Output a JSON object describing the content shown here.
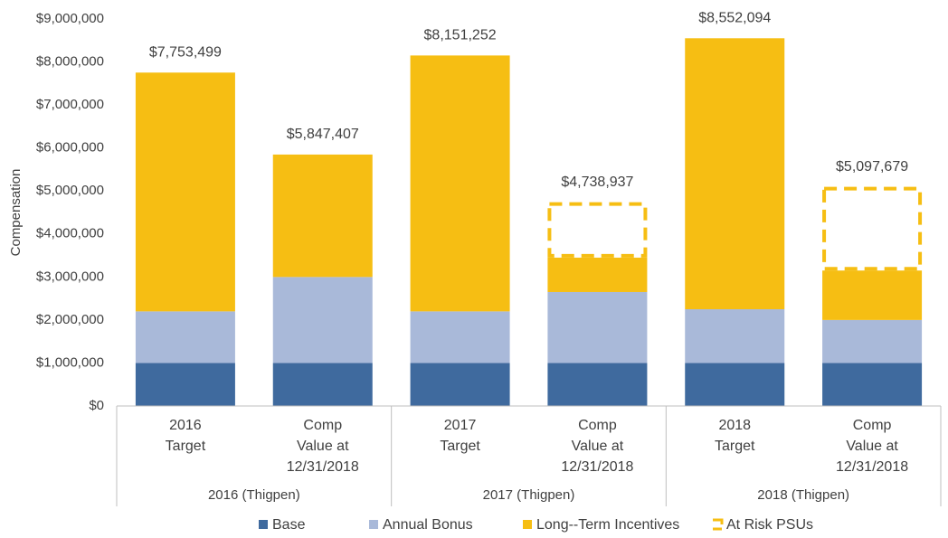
{
  "chart_data": {
    "type": "stacked_bar",
    "y_label": "Compensation",
    "categories": [
      [
        "2016",
        "Target"
      ],
      [
        "Comp",
        "Value at",
        "12/31/2018"
      ],
      [
        "2017",
        "Target"
      ],
      [
        "Comp",
        "Value at",
        "12/31/2018"
      ],
      [
        "2018",
        "Target"
      ],
      [
        "Comp",
        "Value at",
        "12/31/2018"
      ]
    ],
    "groups": [
      "2016 (Thigpen)",
      "2017 (Thigpen)",
      "2018 (Thigpen)"
    ],
    "total_labels": [
      "$7,753,499",
      "$5,847,407",
      "$8,151,252",
      "$4,738,937",
      "$8,552,094",
      "$5,097,679"
    ],
    "series": [
      {
        "name": "Base",
        "color": "#3f6a9e",
        "values": [
          1000000,
          1000000,
          1000000,
          1000000,
          1000000,
          1000000
        ]
      },
      {
        "name": "Annual Bonus",
        "color": "#a9b9d9",
        "values": [
          1200000,
          2000000,
          1200000,
          1650000,
          1250000,
          1000000
        ]
      },
      {
        "name": "Long--Term Incentives",
        "color": "#f6be13",
        "values": [
          5553499,
          2847407,
          5951252,
          800000,
          6302094,
          1150000
        ]
      },
      {
        "name": "At Risk PSUs",
        "color": "#f6be13",
        "style": "dashed",
        "values": [
          null,
          null,
          null,
          1288937,
          null,
          1947679
        ]
      }
    ],
    "ylim": [
      0,
      9000000
    ],
    "yticks": [
      {
        "value": 0,
        "label": "$0"
      },
      {
        "value": 1000000,
        "label": "$1,000,000"
      },
      {
        "value": 2000000,
        "label": "$2,000,000"
      },
      {
        "value": 3000000,
        "label": "$3,000,000"
      },
      {
        "value": 4000000,
        "label": "$4,000,000"
      },
      {
        "value": 5000000,
        "label": "$5,000,000"
      },
      {
        "value": 6000000,
        "label": "$6,000,000"
      },
      {
        "value": 7000000,
        "label": "$7,000,000"
      },
      {
        "value": 8000000,
        "label": "$8,000,000"
      },
      {
        "value": 9000000,
        "label": "$9,000,000"
      }
    ],
    "grid": false
  }
}
